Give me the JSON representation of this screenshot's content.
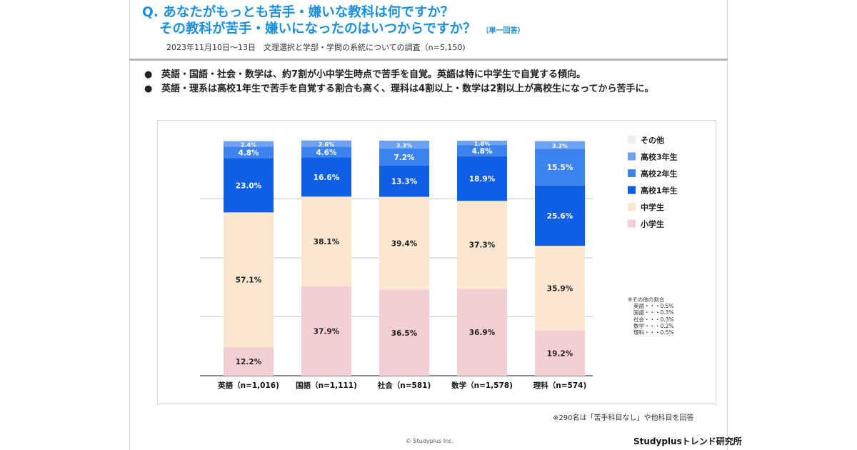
{
  "header": {
    "title_line1": "Q. あなたがもっとも苦手・嫌いな教科は何ですか？",
    "title_line2": "その教科が苦手・嫌いになったのはいつからですか？",
    "title_note": "（単一回答）",
    "survey": "2023年11月10日～13日　文理選択と学部・学問の系統についての調査（n=5,150)"
  },
  "bullets": [
    "英語・国語・社会・数学は、約7割が小中学生時点で苦手を自覚。英語は特に中学生で自覚する傾向。",
    "英語・理系は高校1年生で苦手を自覚する割合も高く、理科は4割以上・数学は2割以上が高校生になってから苦手に。"
  ],
  "bullet_symbol": "●",
  "chart_data": {
    "type": "bar",
    "stacked": true,
    "percent_scale": true,
    "categories": [
      "英語（n=1,016)",
      "国語（n=1,111)",
      "社会（n=581)",
      "数学（n=1,578)",
      "理科（n=574)"
    ],
    "series": [
      {
        "name": "小学生",
        "color": "#f3cfd3",
        "values": [
          12.2,
          37.9,
          36.5,
          36.9,
          19.2
        ]
      },
      {
        "name": "中学生",
        "color": "#fbe6cf",
        "values": [
          57.1,
          38.1,
          39.4,
          37.3,
          35.9
        ]
      },
      {
        "name": "高校1年生",
        "color": "#0f5ee6",
        "values": [
          23.0,
          16.6,
          13.3,
          18.9,
          25.6
        ]
      },
      {
        "name": "高校2年生",
        "color": "#3d83ef",
        "values": [
          4.8,
          4.6,
          7.2,
          4.8,
          15.5
        ]
      },
      {
        "name": "高校3年生",
        "color": "#6ba2f2",
        "values": [
          2.4,
          2.6,
          3.3,
          1.8,
          3.3
        ]
      },
      {
        "name": "その他",
        "color": "#ededed",
        "values": [
          0.5,
          0.3,
          0.3,
          0.2,
          0.5
        ]
      }
    ],
    "legend_order": [
      "その他",
      "高校3年生",
      "高校2年生",
      "高校1年生",
      "中学生",
      "小学生"
    ],
    "ylim": [
      0,
      100
    ],
    "gridlines": true
  },
  "other_note": {
    "heading": "※その他の割合",
    "lines": [
      "英語・・・0.5%",
      "国語・・・0.3%",
      "社会・・・0.3%",
      "数学・・・0.2%",
      "理科・・・0.5%"
    ]
  },
  "footer": {
    "note": "※290名は「苦手科目なし」や他科目を回答",
    "copyright": "© Studyplus Inc.",
    "brand": "Studyplusトレンド研究所"
  }
}
